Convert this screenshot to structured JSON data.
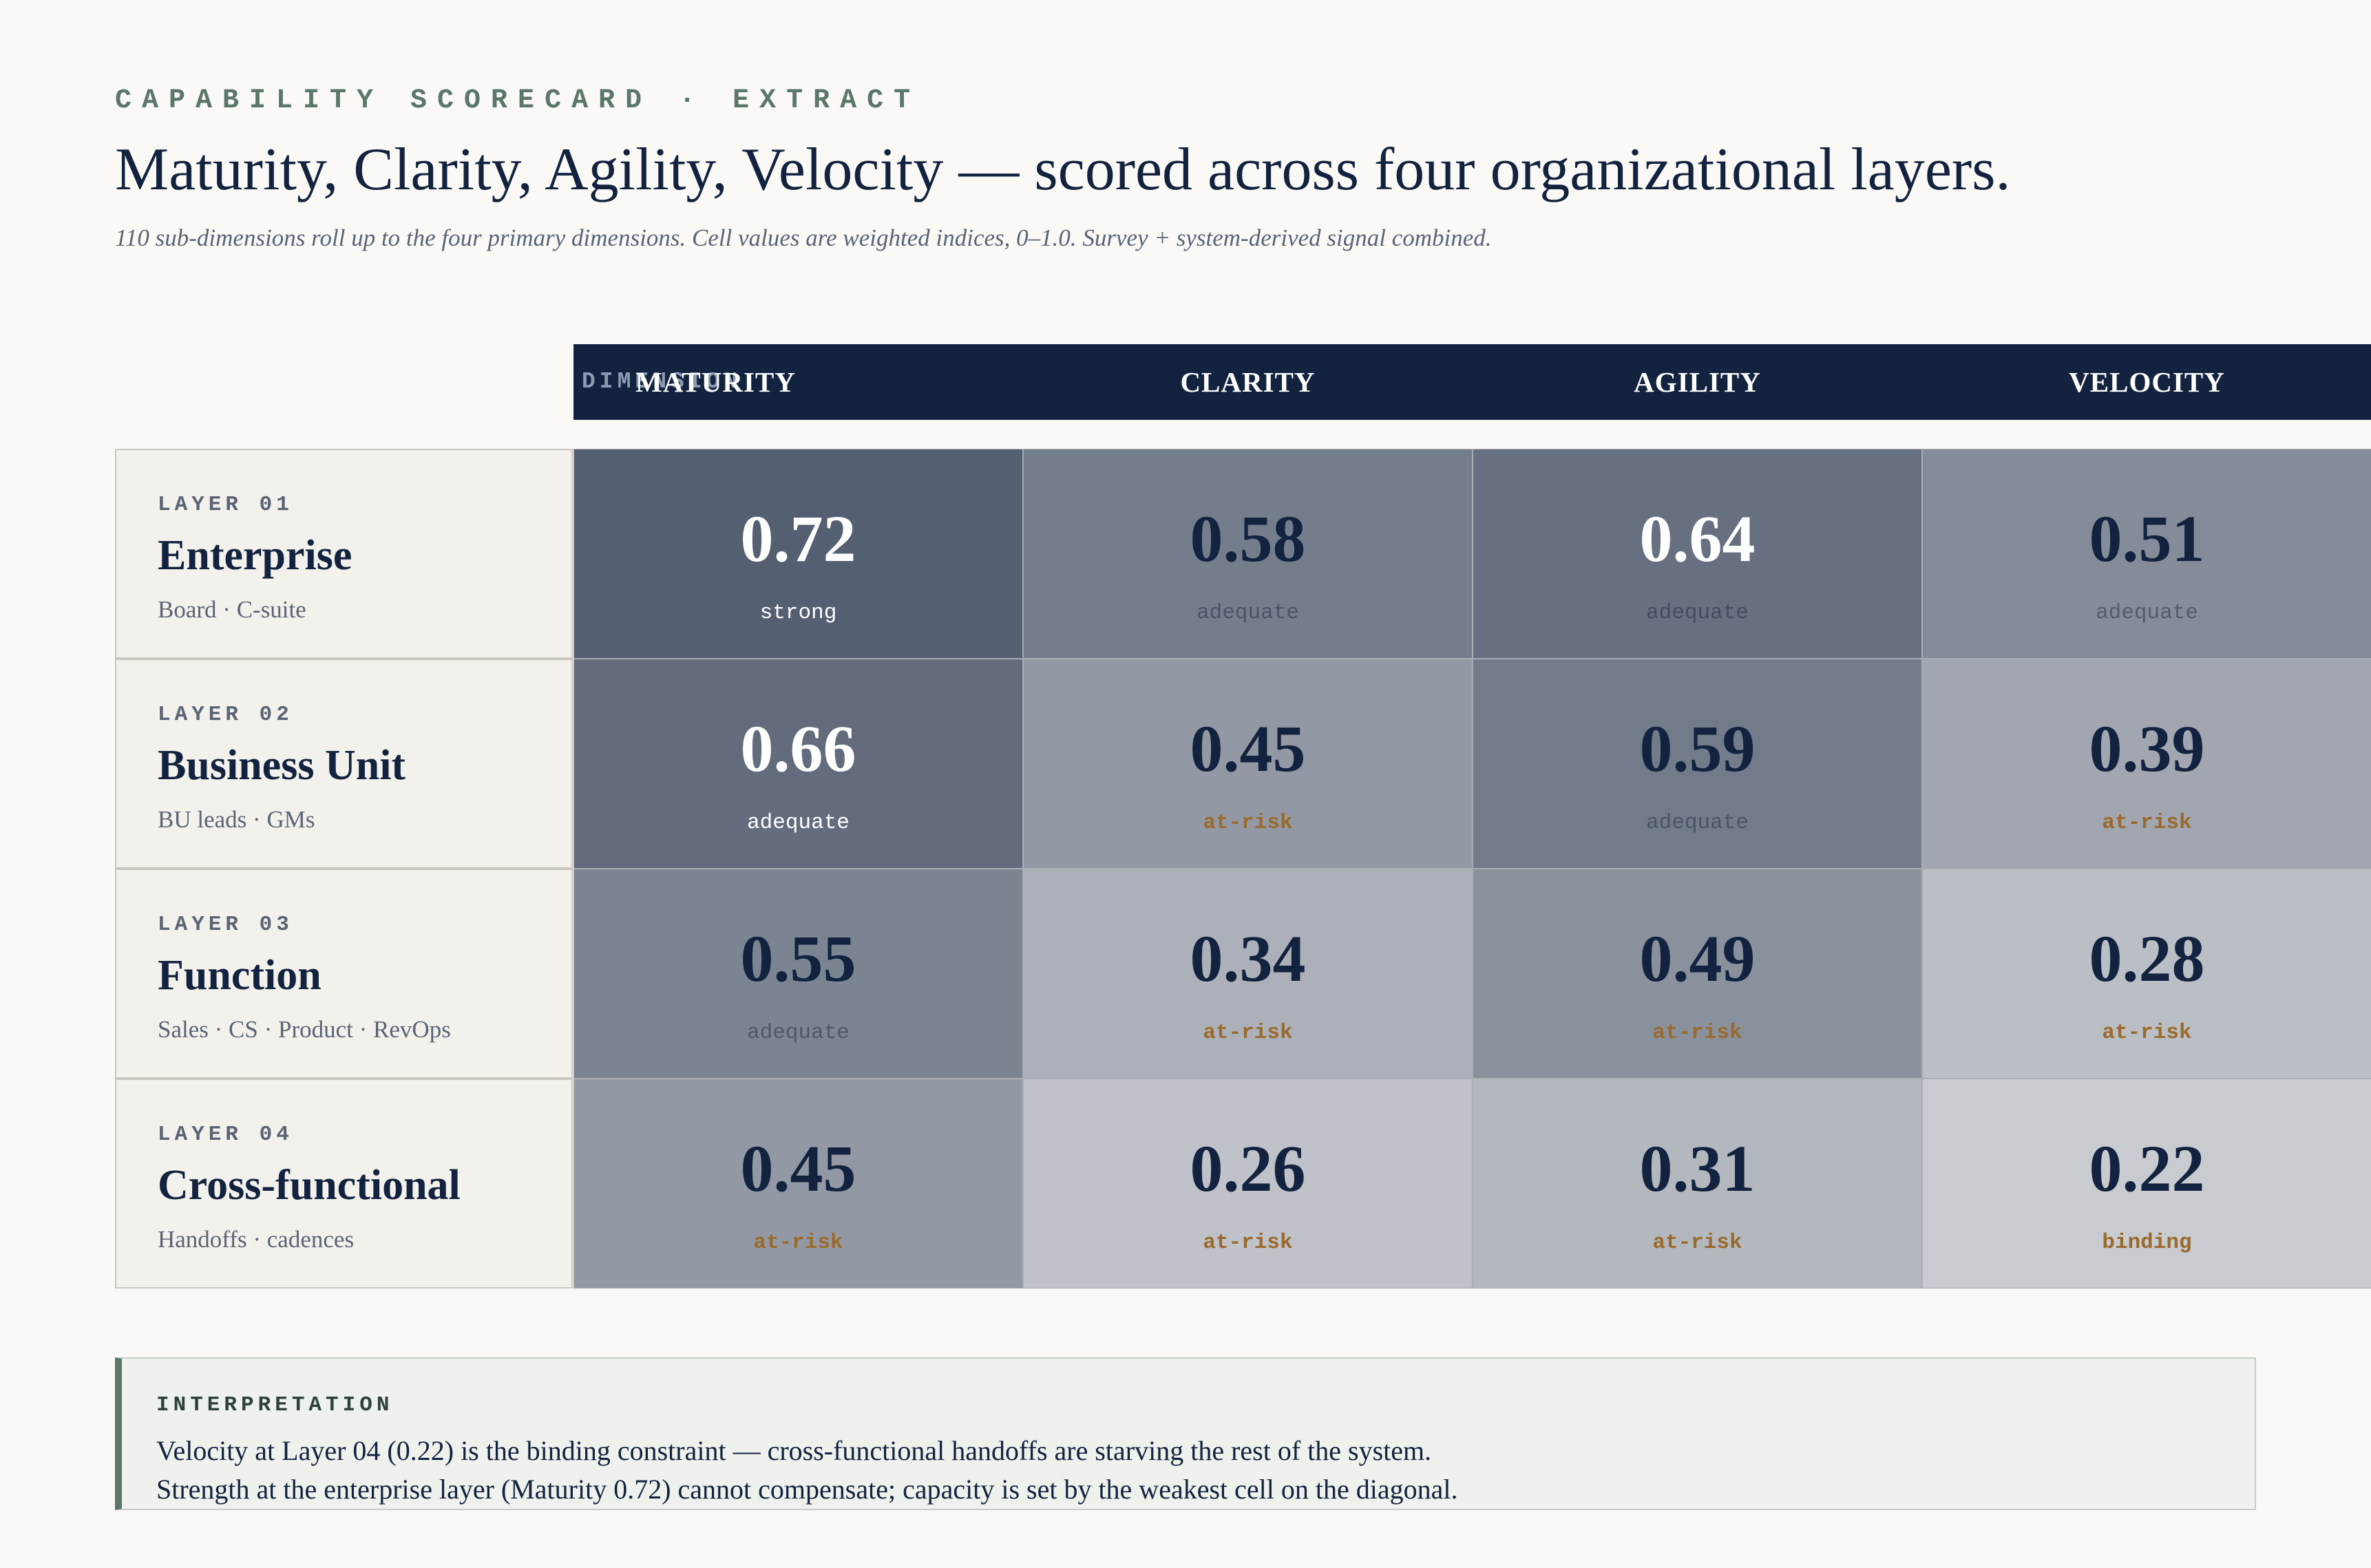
{
  "eyebrow": "CAPABILITY SCORECARD · EXTRACT",
  "title": "Maturity, Clarity, Agility, Velocity — scored across four organizational layers.",
  "subtitle": "110 sub-dimensions roll up to the four primary dimensions. Cell values are weighted indices, 0–1.0. Survey + system-derived signal combined.",
  "chart_data": {
    "type": "heatmap",
    "header_label": "DIMENSION",
    "columns": [
      "MATURITY",
      "CLARITY",
      "AGILITY",
      "VELOCITY"
    ],
    "value_range": [
      0,
      1.0
    ],
    "rows": [
      {
        "layer": "LAYER 01",
        "name": "Enterprise",
        "sub": "Board · C-suite",
        "values": [
          0.72,
          0.58,
          0.64,
          0.51
        ],
        "status": [
          "strong",
          "adequate",
          "adequate",
          "adequate"
        ]
      },
      {
        "layer": "LAYER 02",
        "name": "Business Unit",
        "sub": "BU leads · GMs",
        "values": [
          0.66,
          0.45,
          0.59,
          0.39
        ],
        "status": [
          "adequate",
          "at-risk",
          "adequate",
          "at-risk"
        ]
      },
      {
        "layer": "LAYER 03",
        "name": "Function",
        "sub": "Sales · CS · Product · RevOps",
        "values": [
          0.55,
          0.34,
          0.49,
          0.28
        ],
        "status": [
          "adequate",
          "at-risk",
          "at-risk",
          "at-risk"
        ]
      },
      {
        "layer": "LAYER 04",
        "name": "Cross-functional",
        "sub": "Handoffs · cadences",
        "values": [
          0.45,
          0.26,
          0.31,
          0.22
        ],
        "status": [
          "at-risk",
          "at-risk",
          "at-risk",
          "binding"
        ]
      }
    ]
  },
  "interpretation": {
    "label": "INTERPRETATION",
    "line1": "Velocity at Layer 04 (0.22) is the binding constraint — cross-functional handoffs are starving the rest of the system.",
    "line2": "Strength at the enterprise layer (Maturity 0.72) cannot compensate; capacity is set by the weakest cell on the diagonal."
  },
  "colors": {
    "navy": "#13233f",
    "accent_green": "#5a7767",
    "risk_amber": "#9a6a2c",
    "cell_dark": "#545f71",
    "cell_light": "#c8cbd0"
  }
}
